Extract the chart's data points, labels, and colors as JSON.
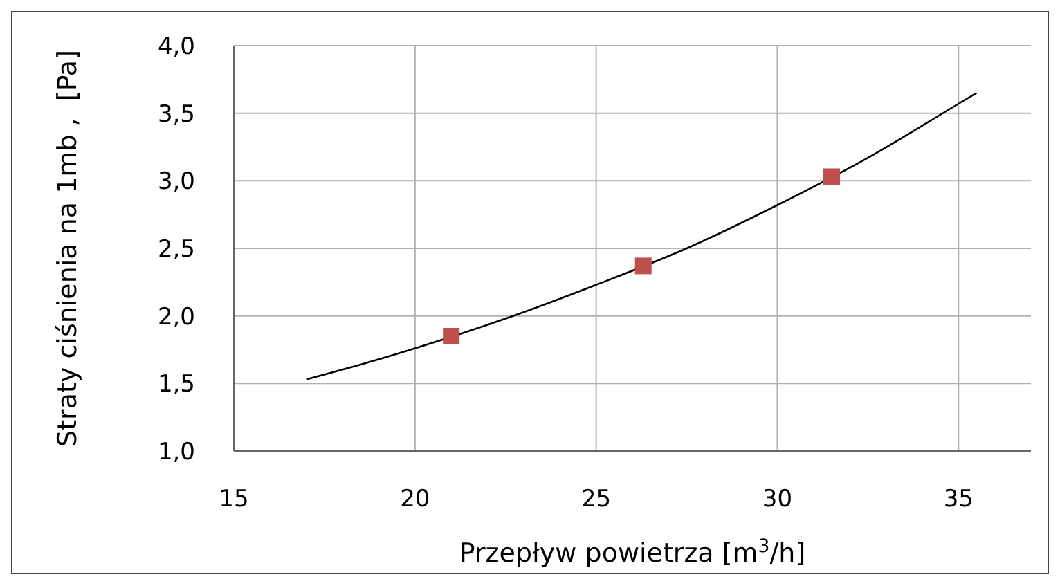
{
  "chart_data": {
    "type": "scatter",
    "xlabel": "Przepływ powietrza [m$^{3}$/h]",
    "ylabel": "Straty ciśnienia na 1mb ,  [Pa]",
    "xlim": [
      15,
      37
    ],
    "xticks": [
      15,
      20,
      25,
      30,
      35
    ],
    "ylim": [
      1,
      4
    ],
    "yticks": [
      {
        "value": 1,
        "label": "1,0"
      },
      {
        "value": 1.5,
        "label": "1,5"
      },
      {
        "value": 2,
        "label": "2,0"
      },
      {
        "value": 2.5,
        "label": "2,5"
      },
      {
        "value": 3,
        "label": "3,0"
      },
      {
        "value": 3.5,
        "label": "3,5"
      },
      {
        "value": 4,
        "label": "4,0"
      }
    ],
    "grid": true,
    "legend": false,
    "series": [
      {
        "color": "#c0504d",
        "marker": "square",
        "x": [
          21.0,
          26.3,
          31.5
        ],
        "values": [
          1.85,
          2.37,
          3.03
        ]
      },
      {
        "type": "line",
        "color": "#000000",
        "marker": "none",
        "x": [
          17.0,
          18.5,
          20,
          22.5,
          25,
          27.5,
          30,
          32.5,
          35,
          35.5
        ],
        "values": [
          1.53,
          1.64,
          1.76,
          1.98,
          2.23,
          2.5,
          2.82,
          3.17,
          3.57,
          3.65
        ]
      }
    ]
  }
}
